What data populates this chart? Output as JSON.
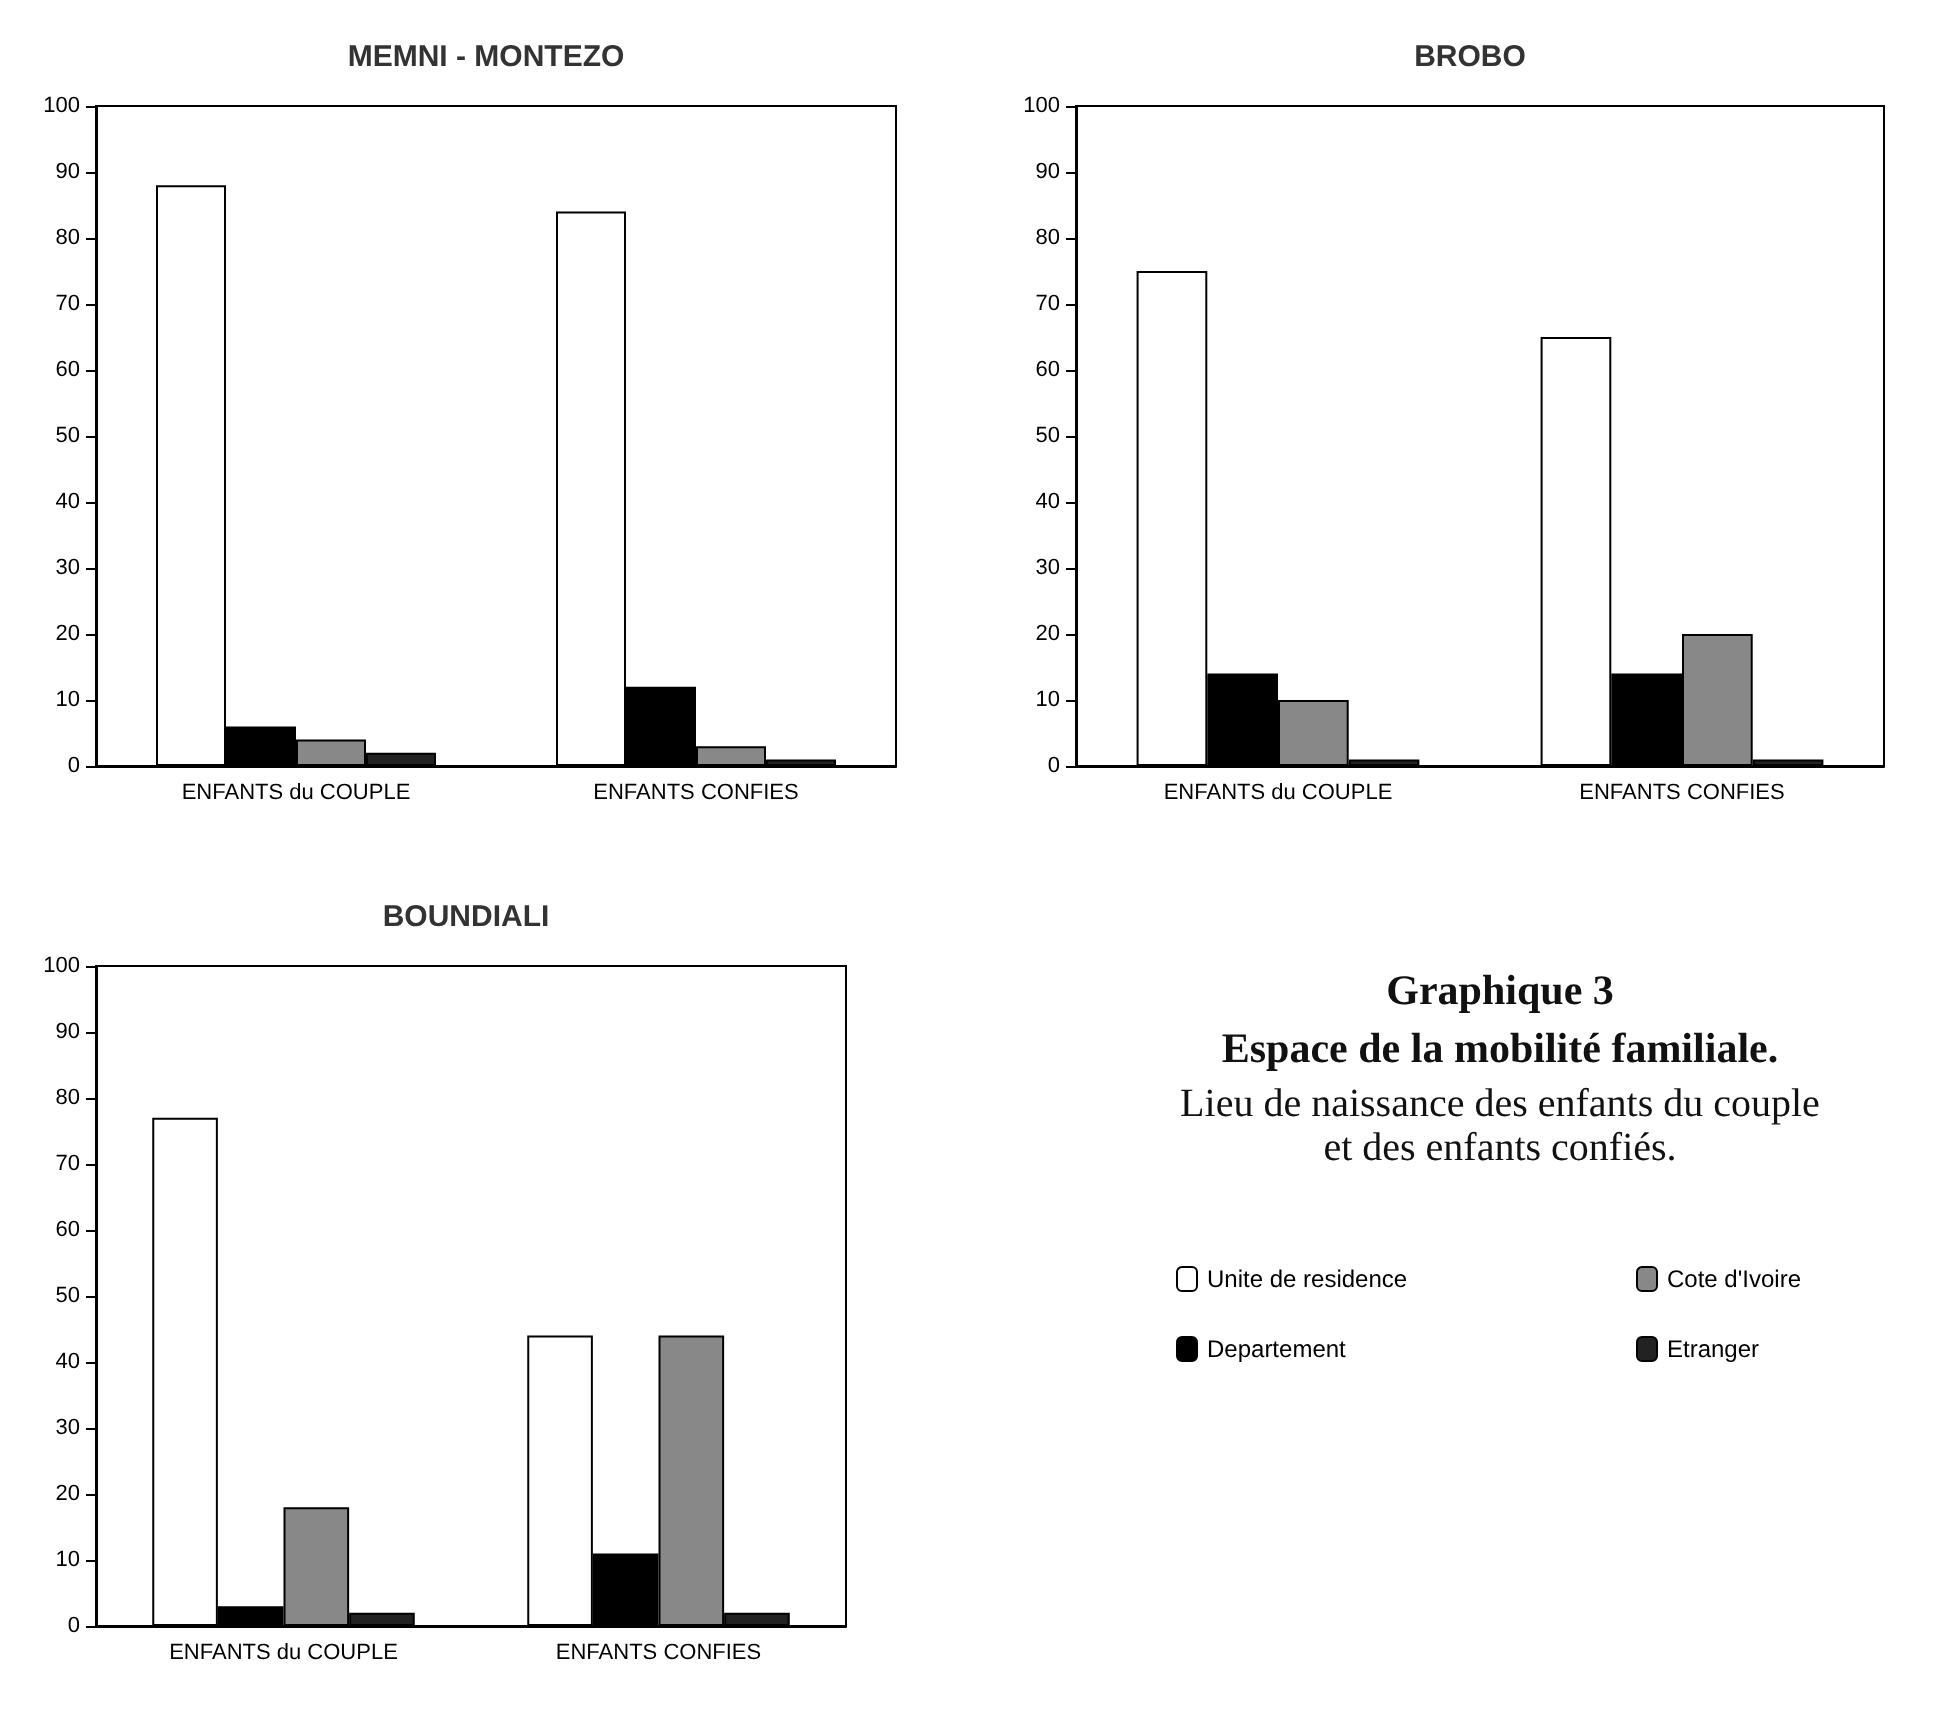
{
  "chart_data": [
    {
      "type": "bar",
      "title": "MEMNI - MONTEZO",
      "categories": [
        "ENFANTS du COUPLE",
        "ENFANTS CONFIES"
      ],
      "ylim": [
        0,
        100
      ],
      "yticks": [
        0,
        10,
        20,
        30,
        40,
        50,
        60,
        70,
        80,
        90,
        100
      ],
      "legend": false,
      "series": [
        {
          "color": "#ffffff",
          "values": [
            88,
            84
          ]
        },
        {
          "color": "#000000",
          "values": [
            6,
            12
          ]
        },
        {
          "color": "#888888",
          "values": [
            4,
            3
          ]
        },
        {
          "color": "#222222",
          "values": [
            2,
            1
          ]
        }
      ]
    },
    {
      "type": "bar",
      "title": "BROBO",
      "categories": [
        "ENFANTS du COUPLE",
        "ENFANTS CONFIES"
      ],
      "ylim": [
        0,
        100
      ],
      "yticks": [
        0,
        10,
        20,
        30,
        40,
        50,
        60,
        70,
        80,
        90,
        100
      ],
      "legend": false,
      "series": [
        {
          "color": "#ffffff",
          "values": [
            75,
            65
          ]
        },
        {
          "color": "#000000",
          "values": [
            14,
            14
          ]
        },
        {
          "color": "#888888",
          "values": [
            10,
            20
          ]
        },
        {
          "color": "#222222",
          "values": [
            1,
            1
          ]
        }
      ]
    },
    {
      "type": "bar",
      "title": "BOUNDIALI",
      "categories": [
        "ENFANTS du COUPLE",
        "ENFANTS CONFIES"
      ],
      "ylim": [
        0,
        100
      ],
      "yticks": [
        0,
        10,
        20,
        30,
        40,
        50,
        60,
        70,
        80,
        90,
        100
      ],
      "legend": "right",
      "series": [
        {
          "name": "Unite de residence",
          "color": "#ffffff",
          "values": [
            77,
            44
          ]
        },
        {
          "name": "Departement",
          "color": "#000000",
          "values": [
            3,
            11
          ]
        },
        {
          "name": "Cote d'Ivoire",
          "color": "#888888",
          "values": [
            18,
            44
          ]
        },
        {
          "name": "Etranger",
          "color": "#222222",
          "values": [
            2,
            2
          ]
        }
      ]
    },
    {
      "type": "other",
      "title": "Graphique 3",
      "subtitle": "Espace de la mobilité familiale.",
      "annotations": [
        "Lieu de naissance des enfants du couple et des enfants confiés."
      ]
    }
  ]
}
